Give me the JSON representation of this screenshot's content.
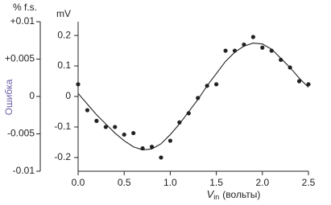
{
  "chart_data": {
    "type": "scatter",
    "y2label": "% f.s.",
    "y2title": "Ошибка",
    "ylabel": "mV",
    "xlabel": [
      "V",
      "in",
      "(вольты)"
    ],
    "x": [
      0,
      0.1,
      0.2,
      0.3,
      0.4,
      0.5,
      0.6,
      0.7,
      0.8,
      0.9,
      1.0,
      1.1,
      1.2,
      1.3,
      1.4,
      1.5,
      1.6,
      1.7,
      1.8,
      1.9,
      2.0,
      2.1,
      2.2,
      2.3,
      2.4,
      2.5
    ],
    "series": [
      {
        "style": "markers",
        "color": "#222222",
        "values": [
          0.04,
          -0.045,
          -0.08,
          -0.1,
          -0.1,
          -0.125,
          -0.12,
          -0.17,
          -0.165,
          -0.2,
          -0.145,
          -0.085,
          -0.055,
          -0.005,
          0.035,
          0.04,
          0.15,
          0.15,
          0.17,
          0.195,
          0.16,
          0.15,
          0.12,
          0.095,
          0.05,
          0.04
        ]
      },
      {
        "style": "line",
        "color": "#222222",
        "values": [
          0.01,
          -0.025,
          -0.06,
          -0.09,
          -0.12,
          -0.145,
          -0.165,
          -0.175,
          -0.172,
          -0.155,
          -0.125,
          -0.09,
          -0.05,
          -0.01,
          0.035,
          0.075,
          0.115,
          0.145,
          0.165,
          0.175,
          0.172,
          0.155,
          0.125,
          0.095,
          0.06,
          0.03
        ]
      }
    ],
    "xlim": [
      0,
      2.5
    ],
    "xticks": [
      {
        "value": 0,
        "label": "0.0"
      },
      0.5,
      {
        "value": 1,
        "label": "1.0"
      },
      1.5,
      {
        "value": 2,
        "label": "2.0"
      },
      2.5
    ],
    "ylim": [
      -0.245,
      0.245
    ],
    "yticks": [
      0.2,
      0.1,
      0,
      -0.1,
      -0.2
    ],
    "y2lim": [
      -0.01,
      0.01
    ],
    "y2ticks": [
      {
        "value": 0.01,
        "label": "+0.01"
      },
      {
        "value": 0.005,
        "label": "+0.005"
      },
      0,
      -0.005,
      -0.01
    ]
  }
}
